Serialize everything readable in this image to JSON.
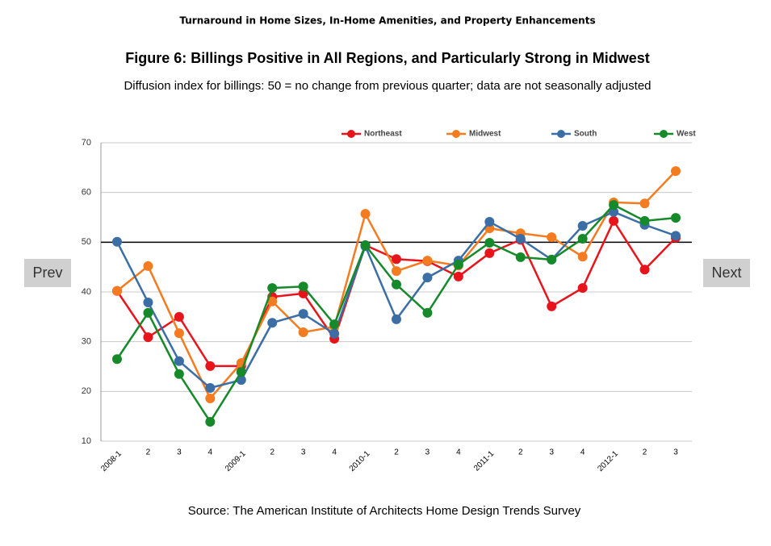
{
  "header": "Turnaround in Home Sizes, In-Home Amenities, and Property Enhancements",
  "chart_data": {
    "type": "line",
    "title": "Figure 6: Billings Positive in All Regions, and Particularly Strong in Midwest",
    "subtitle": "Diffusion index for billings: 50 = no change from previous quarter; data are not seasonally adjusted",
    "categories": [
      "2008-1",
      "2",
      "3",
      "4",
      "2009-1",
      "2",
      "3",
      "4",
      "2010-1",
      "2",
      "3",
      "4",
      "2011-1",
      "2",
      "3",
      "4",
      "2012-1",
      "2",
      "3"
    ],
    "series": [
      {
        "name": "Northeast",
        "color": "#e8141b",
        "values": [
          40.2,
          30.9,
          35.0,
          25.1,
          25.1,
          39.0,
          39.7,
          30.6,
          49.4,
          46.6,
          46.2,
          43.1,
          47.8,
          50.5,
          37.1,
          40.8,
          54.3,
          44.5,
          50.9
        ]
      },
      {
        "name": "Midwest",
        "color": "#f47b20",
        "values": [
          40.2,
          45.2,
          31.7,
          18.6,
          25.7,
          38.1,
          31.9,
          33.0,
          55.7,
          44.2,
          46.3,
          45.3,
          52.8,
          51.8,
          51.0,
          47.1,
          58.0,
          57.8,
          64.3
        ]
      },
      {
        "name": "South",
        "color": "#3a6ea5",
        "values": [
          50.1,
          37.9,
          26.1,
          20.7,
          22.3,
          33.8,
          35.6,
          31.6,
          49.2,
          34.5,
          42.9,
          46.3,
          54.1,
          50.7,
          46.5,
          53.3,
          56.1,
          53.5,
          51.3
        ]
      },
      {
        "name": "West",
        "color": "#168a2a",
        "values": [
          26.5,
          35.8,
          23.5,
          13.9,
          23.9,
          40.8,
          41.1,
          33.5,
          49.4,
          41.5,
          35.8,
          45.5,
          49.9,
          47.0,
          46.5,
          50.7,
          57.5,
          54.3,
          54.9
        ]
      }
    ],
    "ylim": [
      10,
      70
    ],
    "yticks": [
      10,
      20,
      30,
      40,
      50,
      60,
      70
    ],
    "grid": true,
    "reference_line": 50,
    "legend": "top"
  },
  "source": "Source: The American Institute of Architects Home Design Trends Survey",
  "nav": {
    "prev": "Prev",
    "next": "Next"
  }
}
